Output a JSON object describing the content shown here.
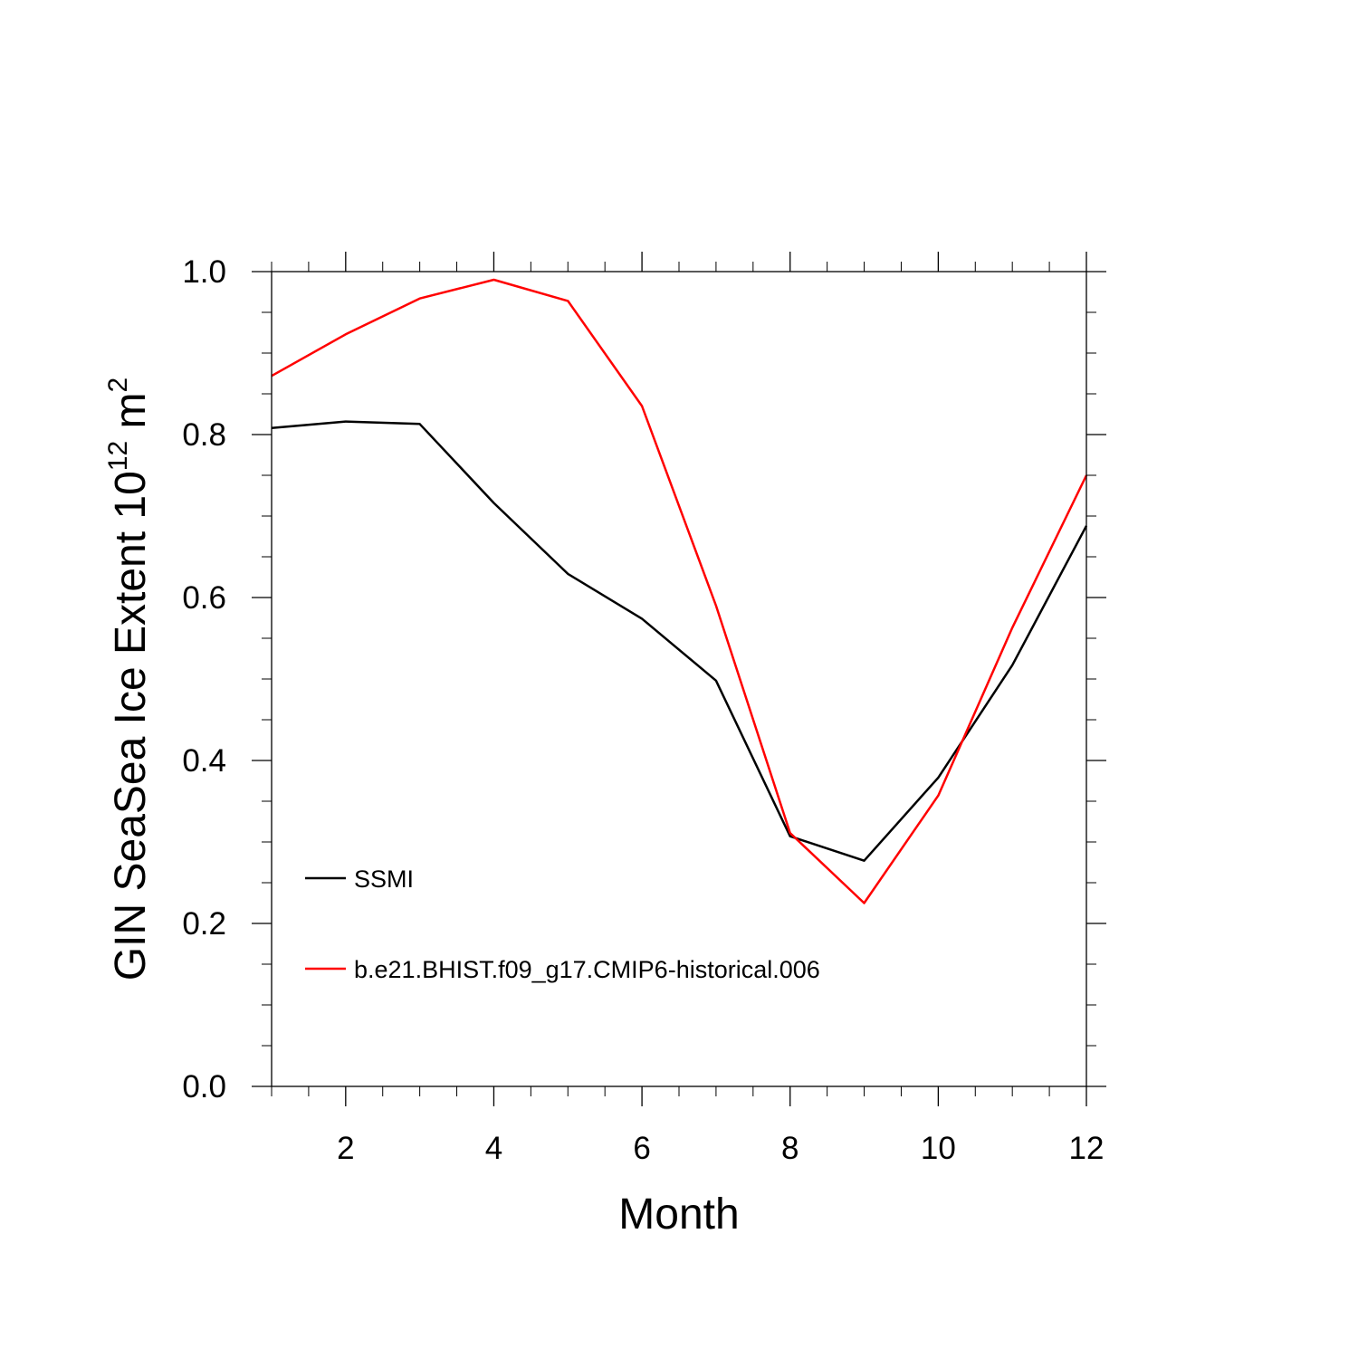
{
  "chart_data": {
    "type": "line",
    "xlabel": "Month",
    "ylabel": {
      "prefix": "GIN SeaSea Ice Extent 10",
      "sup1": "12",
      "mid": " m",
      "sup2": "2"
    },
    "xlim": [
      1,
      12
    ],
    "ylim": [
      0.0,
      1.0
    ],
    "x_ticks": [
      2,
      4,
      6,
      8,
      10,
      12
    ],
    "y_ticks": [
      "0.0",
      "0.2",
      "0.4",
      "0.6",
      "0.8",
      "1.0"
    ],
    "x": [
      1,
      2,
      3,
      4,
      5,
      6,
      7,
      8,
      9,
      10,
      11,
      12
    ],
    "series": [
      {
        "name": "SSMI",
        "color": "#000000",
        "values": [
          0.808,
          0.816,
          0.813,
          0.716,
          0.629,
          0.574,
          0.498,
          0.307,
          0.277,
          0.379,
          0.517,
          0.688
        ]
      },
      {
        "name": "b.e21.BHIST.f09_g17.CMIP6-historical.006",
        "color": "#ff0000",
        "values": [
          0.872,
          0.923,
          0.967,
          0.99,
          0.964,
          0.835,
          0.59,
          0.311,
          0.225,
          0.357,
          0.563,
          0.75
        ]
      }
    ],
    "legend_position": "lower-left inside plot",
    "grid": false
  }
}
